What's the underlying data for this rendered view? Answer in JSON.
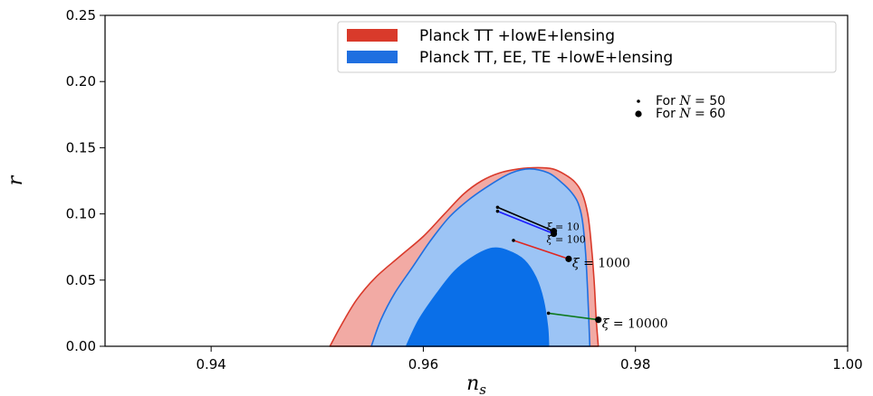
{
  "chart_data": {
    "type": "area",
    "xlabel": "n_s",
    "ylabel": "r",
    "xlim": [
      0.93,
      1.0
    ],
    "ylim": [
      0.0,
      0.25
    ],
    "xticks": [
      0.94,
      0.96,
      0.98,
      1.0
    ],
    "xtick_labels": [
      "0.94",
      "0.96",
      "0.98",
      "1.00"
    ],
    "yticks": [
      0.0,
      0.05,
      0.1,
      0.15,
      0.2,
      0.25
    ],
    "ytick_labels": [
      "0.00",
      "0.05",
      "0.10",
      "0.15",
      "0.20",
      "0.25"
    ],
    "grid": false,
    "legend_position": "top-right",
    "legend": [
      {
        "label": "Planck TT +lowE+lensing",
        "color": "#d93a2b"
      },
      {
        "label": "Planck TT, EE, TE +lowE+lensing",
        "color": "#1f6fe0"
      }
    ],
    "marker_legend": [
      {
        "label": "For N = 50",
        "prefix": "For ",
        "var": "N",
        "suffix": " = 50",
        "size": "small"
      },
      {
        "label": "For N = 60",
        "prefix": "For ",
        "var": "N",
        "suffix": " = 60",
        "size": "large"
      }
    ],
    "contours": [
      {
        "name": "Planck TT +lowE+lensing (2σ)",
        "fill": "#f2aaa4",
        "stroke": "#d93a2b",
        "points": [
          [
            0.9512,
            0.0
          ],
          [
            0.9522,
            0.015
          ],
          [
            0.9537,
            0.035
          ],
          [
            0.9555,
            0.052
          ],
          [
            0.9578,
            0.068
          ],
          [
            0.96,
            0.083
          ],
          [
            0.962,
            0.1
          ],
          [
            0.9638,
            0.115
          ],
          [
            0.9655,
            0.125
          ],
          [
            0.9672,
            0.131
          ],
          [
            0.969,
            0.134
          ],
          [
            0.9708,
            0.135
          ],
          [
            0.9722,
            0.134
          ],
          [
            0.9733,
            0.13
          ],
          [
            0.9743,
            0.124
          ],
          [
            0.975,
            0.115
          ],
          [
            0.9755,
            0.1
          ],
          [
            0.9758,
            0.08
          ],
          [
            0.9761,
            0.05
          ],
          [
            0.9763,
            0.02
          ],
          [
            0.9765,
            0.0
          ]
        ]
      },
      {
        "name": "Planck TT, EE, TE +lowE+lensing (2σ)",
        "fill": "#9cc4f5",
        "stroke": "#1f6fe0",
        "points": [
          [
            0.9551,
            0.0
          ],
          [
            0.956,
            0.02
          ],
          [
            0.9573,
            0.04
          ],
          [
            0.959,
            0.06
          ],
          [
            0.9607,
            0.08
          ],
          [
            0.9625,
            0.098
          ],
          [
            0.9645,
            0.112
          ],
          [
            0.9665,
            0.123
          ],
          [
            0.9683,
            0.131
          ],
          [
            0.97,
            0.134
          ],
          [
            0.9718,
            0.131
          ],
          [
            0.973,
            0.124
          ],
          [
            0.974,
            0.116
          ],
          [
            0.9746,
            0.108
          ],
          [
            0.975,
            0.095
          ],
          [
            0.9753,
            0.07
          ],
          [
            0.9755,
            0.04
          ],
          [
            0.9757,
            0.0
          ]
        ]
      },
      {
        "name": "Planck TT, EE, TE +lowE+lensing (1σ)",
        "fill": "#0a6fe8",
        "stroke": "#0a6fe8",
        "points": [
          [
            0.9584,
            0.0
          ],
          [
            0.9596,
            0.02
          ],
          [
            0.9613,
            0.04
          ],
          [
            0.963,
            0.057
          ],
          [
            0.9648,
            0.068
          ],
          [
            0.9665,
            0.074
          ],
          [
            0.968,
            0.072
          ],
          [
            0.9695,
            0.065
          ],
          [
            0.9706,
            0.052
          ],
          [
            0.9713,
            0.035
          ],
          [
            0.9717,
            0.015
          ],
          [
            0.9718,
            0.0
          ]
        ]
      }
    ],
    "predictions": [
      {
        "label": "ξ = 10",
        "xi": "10",
        "color": "#000000",
        "n50": [
          0.967,
          0.105
        ],
        "n60": [
          0.9723,
          0.087
        ],
        "label_size": "small"
      },
      {
        "label": "ξ = 100",
        "xi": "100",
        "color": "#1a1aff",
        "n50": [
          0.967,
          0.102
        ],
        "n60": [
          0.9723,
          0.085
        ],
        "label_size": "small"
      },
      {
        "label": "ξ = 1000",
        "xi": "1000",
        "color": "#e0261f",
        "n50": [
          0.9685,
          0.08
        ],
        "n60": [
          0.9737,
          0.066
        ],
        "label_size": "large"
      },
      {
        "label": "ξ = 10000",
        "xi": "10000",
        "color": "#0e7a1e",
        "n50": [
          0.9718,
          0.025
        ],
        "n60": [
          0.9765,
          0.02
        ],
        "label_size": "large"
      }
    ]
  }
}
